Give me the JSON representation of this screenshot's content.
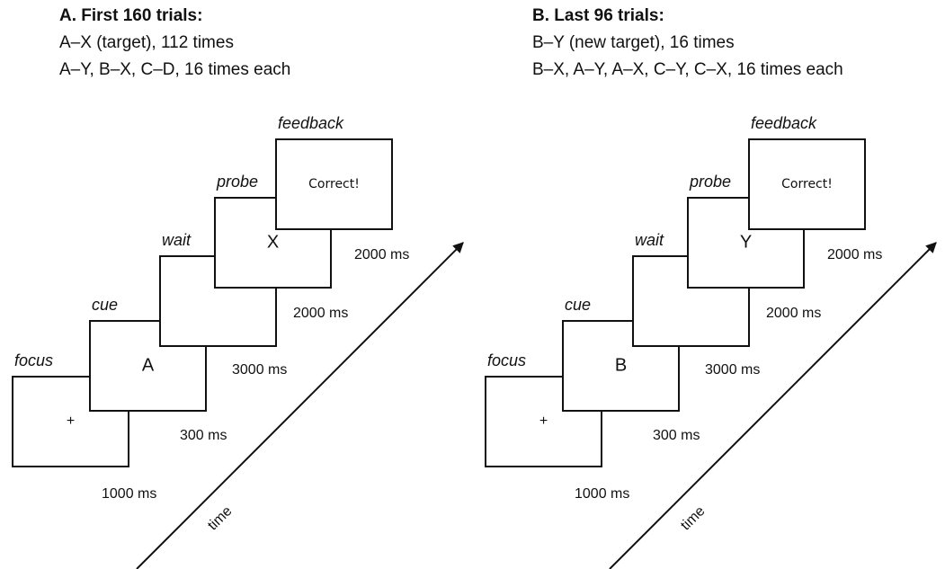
{
  "panels": [
    {
      "title": "A. First 160 trials:",
      "lines": [
        "A–X (target), 112 times",
        "A–Y, B–X, C–D, 16 times each"
      ],
      "stages": [
        {
          "label": "focus",
          "content": "+",
          "duration": "1000 ms"
        },
        {
          "label": "cue",
          "content": "A",
          "duration": "300 ms"
        },
        {
          "label": "wait",
          "duration": "3000 ms"
        },
        {
          "label": "probe",
          "content": "X",
          "duration": "2000 ms"
        },
        {
          "label": "feedback",
          "content": "Correct!",
          "duration": "2000 ms"
        }
      ],
      "time_label": "time"
    },
    {
      "title": "B. Last 96 trials:",
      "lines": [
        "B–Y (new target), 16 times",
        "B–X, A–Y, A–X, C–Y, C–X, 16 times each"
      ],
      "stages": [
        {
          "label": "focus",
          "content": "+",
          "duration": "1000 ms"
        },
        {
          "label": "cue",
          "content": "B",
          "duration": "300 ms"
        },
        {
          "label": "wait",
          "duration": "3000 ms"
        },
        {
          "label": "probe",
          "content": "Y",
          "duration": "2000 ms"
        },
        {
          "label": "feedback",
          "content": "Correct!",
          "duration": "2000 ms"
        }
      ],
      "time_label": "time"
    }
  ]
}
